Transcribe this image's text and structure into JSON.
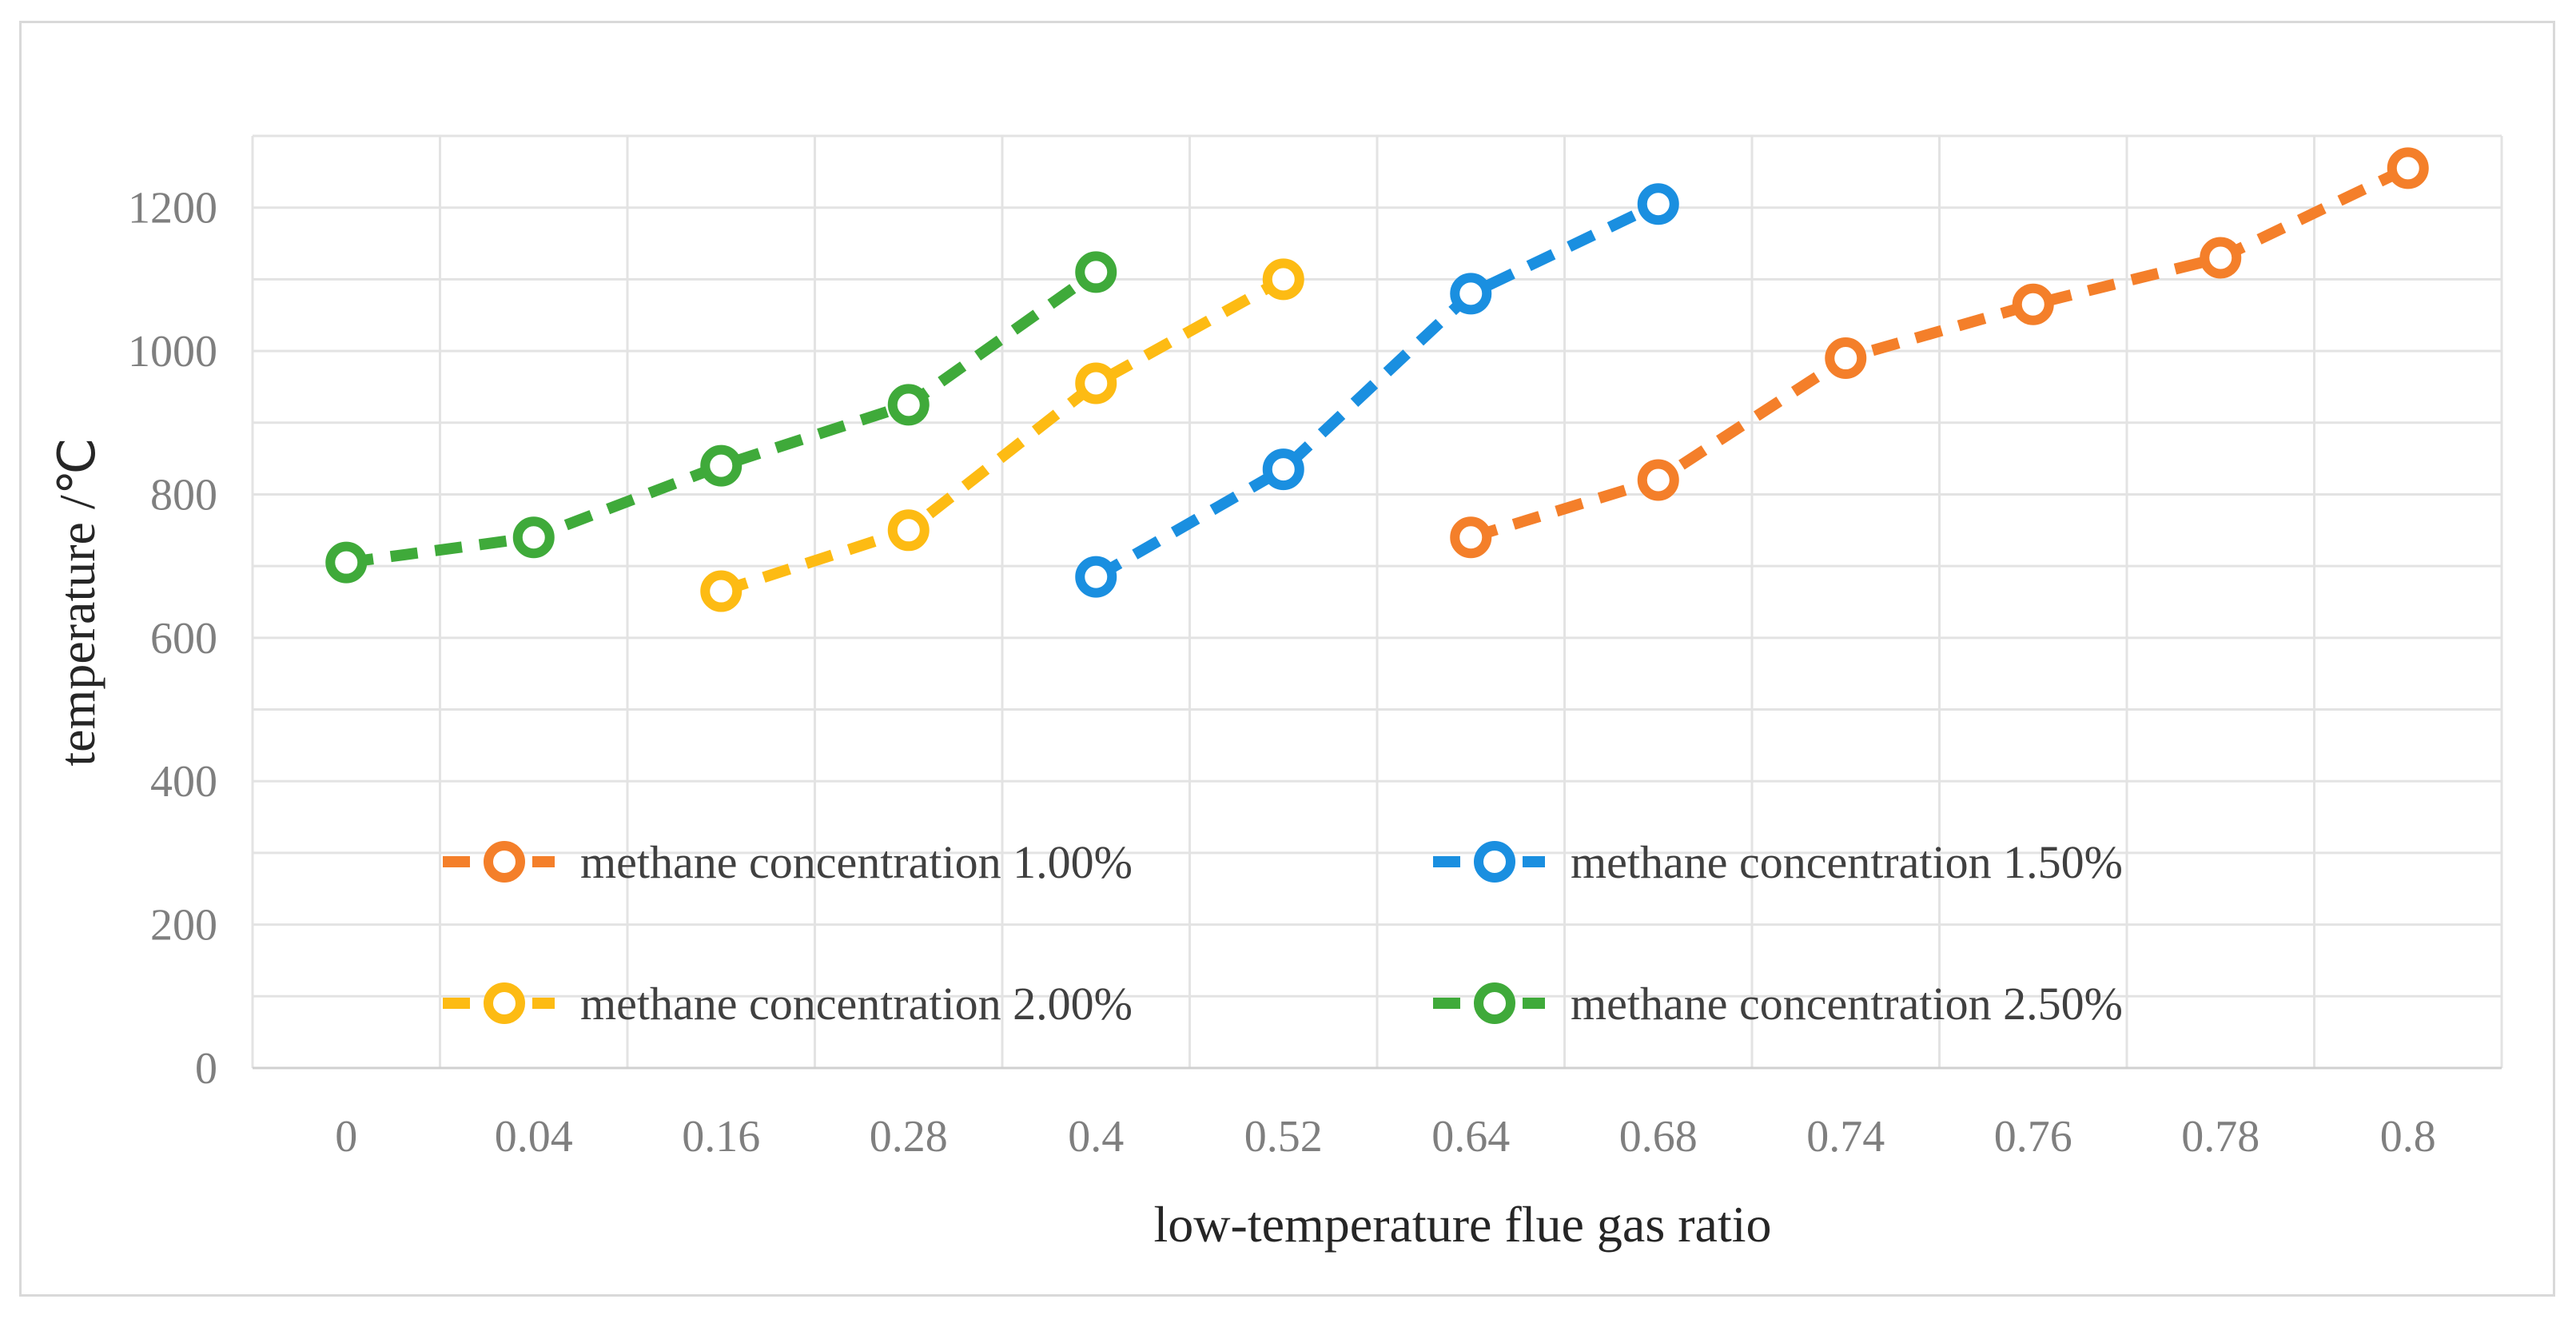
{
  "chart_data": {
    "type": "line",
    "title": "",
    "xlabel": "low-temperature flue gas  ratio",
    "ylabel": "temperature /℃",
    "categories": [
      "0",
      "0.04",
      "0.16",
      "0.28",
      "0.4",
      "0.52",
      "0.64",
      "0.68",
      "0.74",
      "0.76",
      "0.78",
      "0.8"
    ],
    "ylim": [
      0,
      1300
    ],
    "yticks": [
      0,
      200,
      400,
      600,
      800,
      1000,
      1200
    ],
    "grid": true,
    "legend_position": "inside-bottom",
    "series": [
      {
        "name": "methane concentration 1.00%",
        "color": "#f47f2a",
        "values": [
          null,
          null,
          null,
          null,
          null,
          null,
          740,
          820,
          990,
          1065,
          1130,
          1255
        ]
      },
      {
        "name": "methane concentration 1.50%",
        "color": "#1a8fe0",
        "values": [
          null,
          null,
          null,
          null,
          685,
          835,
          1080,
          1205,
          null,
          null,
          null,
          null
        ]
      },
      {
        "name": "methane concentration 2.00%",
        "color": "#fdbb13",
        "values": [
          null,
          null,
          665,
          750,
          955,
          1100,
          null,
          null,
          null,
          null,
          null,
          null
        ]
      },
      {
        "name": "methane concentration 2.50%",
        "color": "#3faa3a",
        "values": [
          705,
          740,
          840,
          925,
          1110,
          null,
          null,
          null,
          null,
          null,
          null,
          null
        ]
      }
    ]
  }
}
